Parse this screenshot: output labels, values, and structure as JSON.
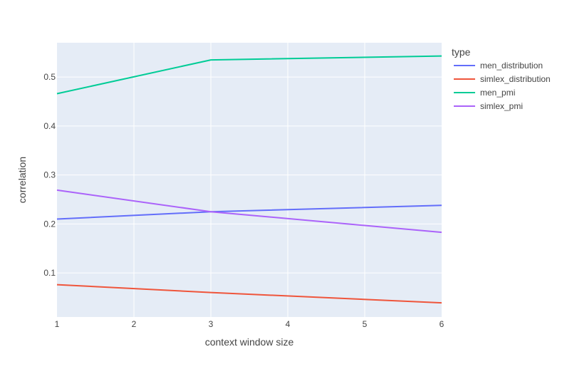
{
  "chart_data": {
    "type": "line",
    "title": "",
    "xlabel": "context window size",
    "ylabel": "correlation",
    "xlim": [
      1,
      6
    ],
    "ylim": [
      0.01,
      0.57
    ],
    "x_ticks": [
      "1",
      "2",
      "3",
      "4",
      "5",
      "6"
    ],
    "y_ticks": [
      "0.1",
      "0.2",
      "0.3",
      "0.4",
      "0.5"
    ],
    "grid": true,
    "legend": {
      "title": "type",
      "position": "right"
    },
    "x": [
      1,
      3,
      6
    ],
    "series": [
      {
        "name": "men_distribution",
        "color": "#636efa",
        "values": [
          0.21,
          0.225,
          0.238
        ]
      },
      {
        "name": "simlex_distribution",
        "color": "#ef553b",
        "values": [
          0.076,
          0.06,
          0.039
        ]
      },
      {
        "name": "men_pmi",
        "color": "#00cc96",
        "values": [
          0.466,
          0.535,
          0.543
        ]
      },
      {
        "name": "simlex_pmi",
        "color": "#ab63fa",
        "values": [
          0.269,
          0.225,
          0.183
        ]
      }
    ]
  }
}
